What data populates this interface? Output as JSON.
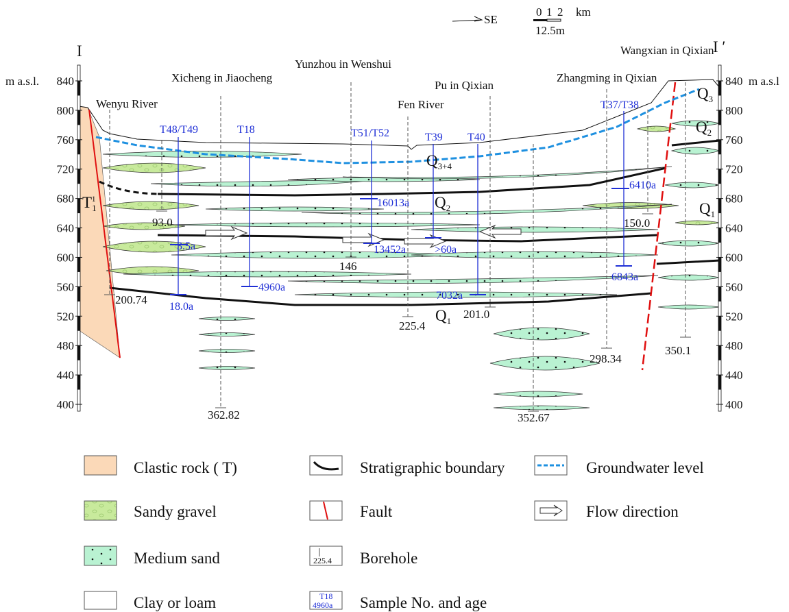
{
  "header": {
    "direction": "SE",
    "scale": {
      "ticks": [
        "0",
        "1",
        "2"
      ],
      "unit": "km",
      "vertical": "12.5m"
    }
  },
  "section": {
    "start": "I",
    "end": "I ′",
    "left_axis_label": "m a.s.l.",
    "right_axis_label": "m a.s.l",
    "ticks": [
      840,
      800,
      760,
      720,
      680,
      640,
      600,
      560,
      520,
      480,
      440,
      400
    ]
  },
  "places": [
    "Wenyu River",
    "Xicheng in Jiaocheng",
    "Yunzhou in Wenshui",
    "Fen River",
    "Pu in Qixian",
    "Zhangming in Qixian",
    "Wangxian in Qixian"
  ],
  "samples": [
    "T48/T49",
    "T18",
    "T51/T52",
    "T39",
    "T40",
    "T37/T38"
  ],
  "ages": [
    "3.5a",
    "18.0a",
    "4960a",
    "16013a",
    "13452a",
    ">60a",
    "7032a",
    "6410a",
    "6843a"
  ],
  "boreholes": [
    "93.0",
    "200.74",
    "362.82",
    "146",
    "225.4",
    "201.0",
    "352.67",
    "298.34",
    "350.1",
    "150.0"
  ],
  "strata": [
    {
      "symbol": "T",
      "sub": "1",
      "sup": "1"
    },
    {
      "symbol": "Q",
      "sub": "3+4"
    },
    {
      "symbol": "Q",
      "sub": "2"
    },
    {
      "symbol": "Q",
      "sub": "1"
    },
    {
      "symbol": "Q",
      "sub": "3"
    },
    {
      "symbol": "Q",
      "sub": "2"
    },
    {
      "symbol": "Q",
      "sub": "1"
    }
  ],
  "legend": {
    "items": [
      "Clastic rock ( T)",
      "Sandy gravel",
      "Medium sand",
      "Clay or loam",
      "Stratigraphic boundary",
      "Fault",
      "Borehole",
      "Sample No. and age",
      "Groundwater level",
      "Flow direction"
    ],
    "borehole_icon": "225.4",
    "sample_icon": {
      "id": "T18",
      "age": "4960a"
    }
  }
}
